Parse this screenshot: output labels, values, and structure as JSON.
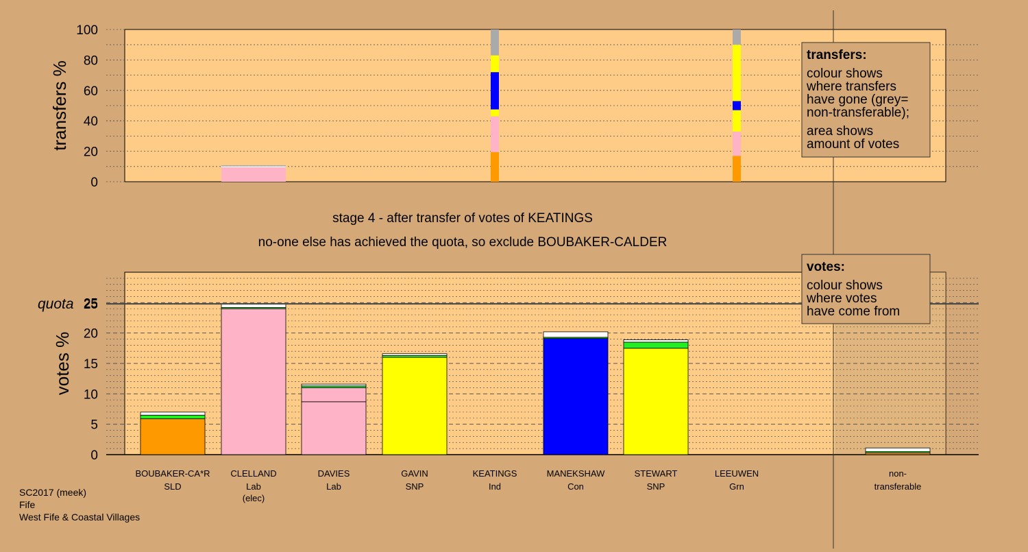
{
  "chart_data": {
    "type": "bar",
    "stage_text": "stage 4 - after transfer of votes of KEATINGS",
    "decision_text": "no-one else has achieved the quota, so exclude BOUBAKER-CALDER",
    "footer": [
      "SC2017 (meek)",
      "Fife",
      "West Fife & Coastal Villages"
    ],
    "colors": {
      "SLD": "#ff9900",
      "Lab": "#ffb3c6",
      "SNP": "#ffff00",
      "Ind": "#bbbbbb",
      "Con": "#0000ff",
      "Grn": "#22ee22",
      "new": "#ffffff",
      "nontransferable": "#aaaaaa",
      "background": "#d4a977",
      "plot_bg": "#ffcc88"
    },
    "candidates": [
      {
        "name": "BOUBAKER-CA*R",
        "party": "SLD",
        "note": ""
      },
      {
        "name": "CLELLAND",
        "party": "Lab",
        "note": "(elec)"
      },
      {
        "name": "DAVIES",
        "party": "Lab",
        "note": ""
      },
      {
        "name": "GAVIN",
        "party": "SNP",
        "note": ""
      },
      {
        "name": "KEATINGS",
        "party": "Ind",
        "note": ""
      },
      {
        "name": "MANEKSHAW",
        "party": "Con",
        "note": ""
      },
      {
        "name": "STEWART",
        "party": "SNP",
        "note": ""
      },
      {
        "name": "LEEUWEN",
        "party": "Grn",
        "note": ""
      },
      {
        "name": "non-",
        "party": "transferable",
        "note": ""
      }
    ],
    "transfers": {
      "ylabel": "transfers %",
      "ylim": [
        0,
        100
      ],
      "ticks": [
        0,
        20,
        40,
        60,
        80,
        100
      ],
      "bars": [
        {
          "index": 1,
          "width": "wide",
          "segments": [
            {
              "color": "Lab",
              "value": 9.5
            },
            {
              "color": "new",
              "value": 0.6
            },
            {
              "color": "nontransferable",
              "value": 0.7
            }
          ]
        },
        {
          "index": 4,
          "width": "narrow",
          "segments": [
            {
              "color": "SLD",
              "value": 19.5
            },
            {
              "color": "Lab",
              "value": 23.5
            },
            {
              "color": "SNP",
              "value": 4.5
            },
            {
              "color": "Con",
              "value": 24.5
            },
            {
              "color": "SNP",
              "value": 11
            },
            {
              "color": "nontransferable",
              "value": 17
            }
          ]
        },
        {
          "index": 7,
          "width": "narrow",
          "segments": [
            {
              "color": "SLD",
              "value": 17
            },
            {
              "color": "Lab",
              "value": 16
            },
            {
              "color": "SNP",
              "value": 14
            },
            {
              "color": "Con",
              "value": 6
            },
            {
              "color": "SNP",
              "value": 37
            },
            {
              "color": "nontransferable",
              "value": 10
            }
          ]
        }
      ],
      "legend": {
        "title": "transfers:",
        "lines": [
          "colour shows",
          "where transfers",
          "have gone (grey=",
          "non-transferable);",
          "area shows",
          "amount of votes"
        ]
      }
    },
    "votes": {
      "ylabel": "votes %",
      "ylim": [
        0,
        30
      ],
      "ticks": [
        0,
        5,
        10,
        15,
        20,
        25
      ],
      "quota": 24.8,
      "quota_label": "quota",
      "bars": [
        {
          "index": 0,
          "segments": [
            {
              "color": "SLD",
              "value": 5.9
            },
            {
              "color": "Grn",
              "value": 0.6
            },
            {
              "color": "new",
              "value": 0.5
            }
          ]
        },
        {
          "index": 1,
          "segments": [
            {
              "color": "Lab",
              "value": 24.0
            },
            {
              "color": "Grn",
              "value": 0.2
            },
            {
              "color": "new",
              "value": 0.6
            }
          ]
        },
        {
          "index": 2,
          "segments": [
            {
              "color": "Lab",
              "value": 8.7
            },
            {
              "color": "Lab",
              "value": 2.3
            },
            {
              "color": "Grn",
              "value": 0.3
            },
            {
              "color": "new",
              "value": 0.3
            }
          ]
        },
        {
          "index": 3,
          "segments": [
            {
              "color": "SNP",
              "value": 16.0
            },
            {
              "color": "Grn",
              "value": 0.3
            },
            {
              "color": "new",
              "value": 0.3
            }
          ]
        },
        {
          "index": 5,
          "segments": [
            {
              "color": "Con",
              "value": 19.1
            },
            {
              "color": "Grn",
              "value": 0.2
            },
            {
              "color": "new",
              "value": 0.9
            }
          ]
        },
        {
          "index": 6,
          "segments": [
            {
              "color": "SNP",
              "value": 17.5
            },
            {
              "color": "Grn",
              "value": 1.0
            },
            {
              "color": "new",
              "value": 0.4
            }
          ]
        },
        {
          "index": 8,
          "segments": [
            {
              "color": "SLD",
              "value": 0.3
            },
            {
              "color": "Grn",
              "value": 0.2
            },
            {
              "color": "new",
              "value": 0.6
            }
          ]
        }
      ],
      "legend": {
        "title": "votes:",
        "lines": [
          "colour shows",
          "where votes",
          "have come from"
        ]
      }
    }
  }
}
